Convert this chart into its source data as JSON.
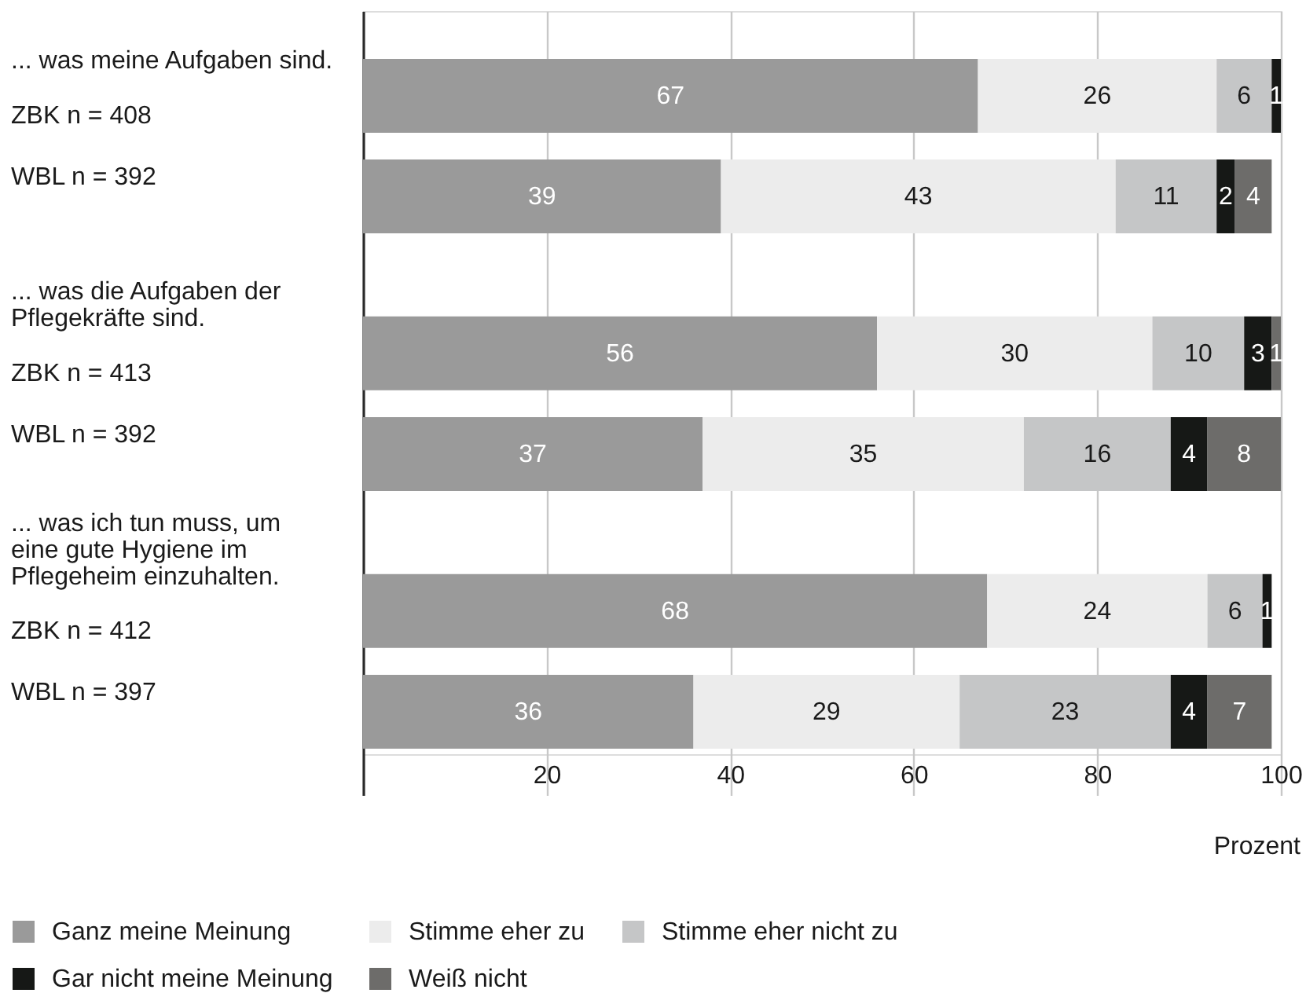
{
  "chart_data": {
    "type": "bar",
    "orientation": "horizontal",
    "stacked": true,
    "categories": [
      "ZBK n = 408",
      "WBL n = 392",
      "ZBK n = 413",
      "WBL n = 392",
      "ZBK n = 412",
      "WBL n = 397"
    ],
    "series": [
      {
        "name": "Ganz meine Meinung",
        "color": "#9a9a9a",
        "values": [
          67,
          39,
          56,
          37,
          68,
          36
        ]
      },
      {
        "name": "Stimme eher zu",
        "color": "#ececec",
        "values": [
          26,
          43,
          30,
          35,
          24,
          29
        ]
      },
      {
        "name": "Stimme eher nicht zu",
        "color": "#c5c6c7",
        "values": [
          6,
          11,
          10,
          16,
          6,
          23
        ]
      },
      {
        "name": "Gar nicht meine Meinung",
        "color": "#161816",
        "values": [
          1,
          2,
          3,
          4,
          1,
          4
        ]
      },
      {
        "name": "Weiß nicht",
        "color": "#6d6c6a",
        "values": [
          null,
          4,
          1,
          8,
          null,
          7
        ]
      }
    ],
    "xlim": [
      0,
      100
    ],
    "xticks": [
      {
        "value": 0,
        "label": null
      },
      20,
      40,
      60,
      80,
      100
    ],
    "xlabel": "Prozent",
    "grid": "x",
    "legend": "bottom left",
    "data_labels": true,
    "annotations": [
      "... was meine Aufgaben sind.",
      "... was die Aufgaben der\nPflegekräfte sind.",
      "... was ich tun muss, um\neine gute Hygiene im\nPflegeheim einzuhalten."
    ]
  }
}
